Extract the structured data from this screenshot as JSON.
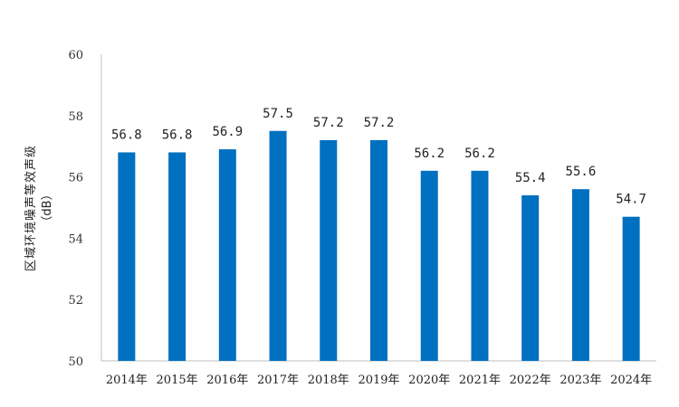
{
  "chart_data": {
    "type": "bar",
    "categories": [
      "2014年",
      "2015年",
      "2016年",
      "2017年",
      "2018年",
      "2019年",
      "2020年",
      "2021年",
      "2022年",
      "2023年",
      "2024年"
    ],
    "values": [
      56.8,
      56.8,
      56.9,
      57.5,
      57.2,
      57.2,
      56.2,
      56.2,
      55.4,
      55.6,
      54.7
    ],
    "data_labels": [
      "56.8",
      "56.8",
      "56.9",
      "57.5",
      "57.2",
      "57.2",
      "56.2",
      "56.2",
      "55.4",
      "55.6",
      "54.7"
    ],
    "title": "",
    "xlabel": "",
    "ylabel_line1": "区域环境噪声等效声级",
    "ylabel_line2": "（dB）",
    "ylim": [
      50,
      60
    ],
    "yticks": [
      50,
      52,
      54,
      56,
      58,
      60
    ],
    "grid": false,
    "legend": "none",
    "bar_color": "#0070c0",
    "axis_color": "#bfbfbf"
  }
}
